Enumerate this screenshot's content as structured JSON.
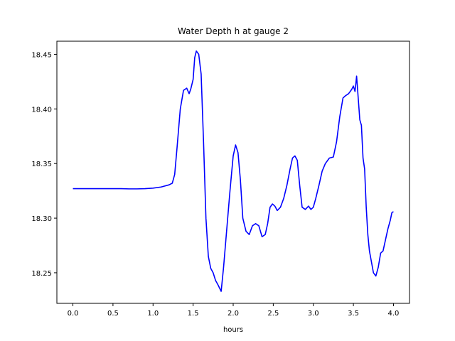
{
  "chart_data": {
    "type": "line",
    "title": "Water Depth h at gauge 2",
    "xlabel": "hours",
    "ylabel": "",
    "xlim": [
      -0.2,
      4.2
    ],
    "ylim": [
      18.222,
      18.462
    ],
    "x_ticks": [
      0.0,
      0.5,
      1.0,
      1.5,
      2.0,
      2.5,
      3.0,
      3.5,
      4.0
    ],
    "x_tick_labels": [
      "0.0",
      "0.5",
      "1.0",
      "1.5",
      "2.0",
      "2.5",
      "3.0",
      "3.5",
      "4.0"
    ],
    "y_ticks": [
      18.25,
      18.3,
      18.35,
      18.4,
      18.45
    ],
    "y_tick_labels": [
      "18.25",
      "18.30",
      "18.35",
      "18.40",
      "18.45"
    ],
    "grid": false,
    "line_color": "#0000ff",
    "series": [
      {
        "x": [
          0.0,
          0.2,
          0.4,
          0.6,
          0.7,
          0.8,
          0.9,
          1.0,
          1.1,
          1.2,
          1.24,
          1.27,
          1.3,
          1.34,
          1.38,
          1.42,
          1.45,
          1.47,
          1.5,
          1.52,
          1.54,
          1.57,
          1.6,
          1.63,
          1.66,
          1.69,
          1.72,
          1.75,
          1.78,
          1.81,
          1.85,
          1.88,
          1.92,
          1.96,
          2.0,
          2.03,
          2.06,
          2.09,
          2.12,
          2.16,
          2.2,
          2.24,
          2.28,
          2.32,
          2.36,
          2.4,
          2.43,
          2.46,
          2.49,
          2.52,
          2.55,
          2.59,
          2.63,
          2.67,
          2.71,
          2.74,
          2.77,
          2.8,
          2.83,
          2.86,
          2.9,
          2.94,
          2.97,
          3.0,
          3.03,
          3.07,
          3.11,
          3.15,
          3.2,
          3.25,
          3.29,
          3.33,
          3.37,
          3.4,
          3.44,
          3.48,
          3.5,
          3.52,
          3.54,
          3.56,
          3.58,
          3.6,
          3.62,
          3.64,
          3.66,
          3.68,
          3.7,
          3.72,
          3.75,
          3.78,
          3.81,
          3.84,
          3.87,
          3.9,
          3.93,
          3.96,
          3.98,
          4.0
        ],
        "y": [
          18.327,
          18.327,
          18.327,
          18.327,
          18.3268,
          18.3268,
          18.327,
          18.3275,
          18.3285,
          18.3305,
          18.332,
          18.34,
          18.365,
          18.4,
          18.417,
          18.419,
          18.414,
          18.418,
          18.427,
          18.447,
          18.453,
          18.45,
          18.432,
          18.37,
          18.3,
          18.265,
          18.254,
          18.25,
          18.243,
          18.239,
          18.233,
          18.255,
          18.29,
          18.325,
          18.357,
          18.367,
          18.36,
          18.335,
          18.3,
          18.288,
          18.285,
          18.293,
          18.295,
          18.293,
          18.283,
          18.285,
          18.295,
          18.31,
          18.313,
          18.311,
          18.307,
          18.31,
          18.318,
          18.33,
          18.345,
          18.355,
          18.357,
          18.353,
          18.33,
          18.31,
          18.308,
          18.311,
          18.308,
          18.31,
          18.318,
          18.33,
          18.343,
          18.35,
          18.355,
          18.356,
          18.37,
          18.393,
          18.41,
          18.412,
          18.414,
          18.418,
          18.421,
          18.416,
          18.43,
          18.41,
          18.39,
          18.385,
          18.355,
          18.345,
          18.31,
          18.285,
          18.27,
          18.262,
          18.25,
          18.247,
          18.255,
          18.268,
          18.27,
          18.28,
          18.29,
          18.298,
          18.305,
          18.306
        ]
      }
    ]
  }
}
